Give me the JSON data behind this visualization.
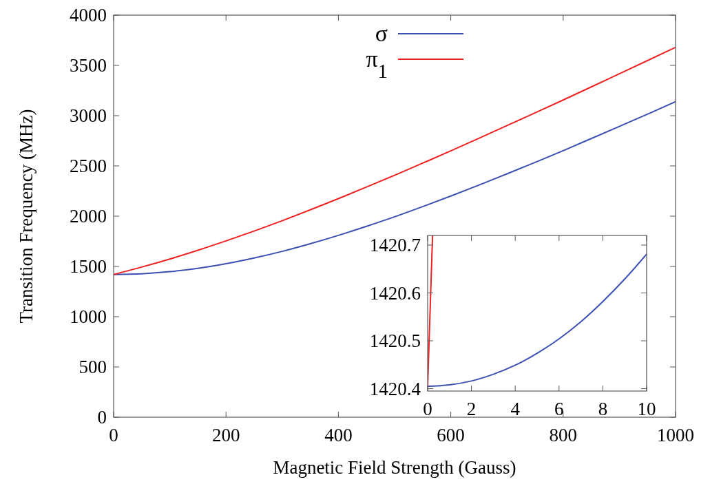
{
  "chart_data": [
    {
      "type": "line",
      "xlabel": "Magnetic Field Strength (Gauss)",
      "ylabel": "Transition Frequency (MHz)",
      "x": [
        0,
        50,
        100,
        150,
        200,
        250,
        300,
        350,
        400,
        450,
        500,
        550,
        600,
        650,
        700,
        750,
        800,
        850,
        900,
        950,
        1000
      ],
      "xlim": [
        0,
        1000
      ],
      "ylim": [
        0,
        4000
      ],
      "xticks": [
        0,
        200,
        400,
        600,
        800,
        1000
      ],
      "yticks": [
        0,
        500,
        1000,
        1500,
        2000,
        2500,
        3000,
        3500,
        4000
      ],
      "grid": false,
      "legend": "top",
      "line_style": "solid",
      "marker": "none",
      "series": [
        {
          "name": "σ",
          "color": "#3c50b4",
          "values": [
            1420,
            1427,
            1448,
            1481,
            1527,
            1584,
            1650,
            1726,
            1809,
            1899,
            1994,
            2095,
            2200,
            2309,
            2421,
            2535,
            2652,
            2772,
            2893,
            3015,
            3140
          ]
        },
        {
          "name": "π$_{1}$",
          "color": "#ee2020",
          "values": [
            1420,
            1494,
            1574,
            1661,
            1754,
            1852,
            1955,
            2063,
            2175,
            2290,
            2407,
            2528,
            2650,
            2775,
            2901,
            3028,
            3156,
            3286,
            3417,
            3548,
            3680
          ]
        }
      ]
    },
    {
      "type": "line",
      "xlim": [
        0,
        10
      ],
      "ylim": [
        1420.395,
        1420.72
      ],
      "xticks": [
        0,
        2,
        4,
        6,
        8,
        10
      ],
      "yticks": [
        1420.4,
        1420.5,
        1420.6,
        1420.7
      ],
      "grid": false,
      "legend": false,
      "line_style": "solid",
      "marker": "none",
      "series": [
        {
          "color": "#3c50b4",
          "x": [
            0,
            1,
            2,
            3,
            4,
            5,
            6,
            7,
            8,
            9,
            10
          ],
          "values": [
            1420.405,
            1420.408,
            1420.416,
            1420.43,
            1420.449,
            1420.474,
            1420.504,
            1420.54,
            1420.582,
            1420.629,
            1420.681
          ]
        },
        {
          "color": "#ee2020",
          "x": [
            0,
            0.1,
            0.2,
            0.226
          ],
          "values": [
            1420.405,
            1420.545,
            1420.685,
            1420.72
          ]
        }
      ]
    }
  ]
}
